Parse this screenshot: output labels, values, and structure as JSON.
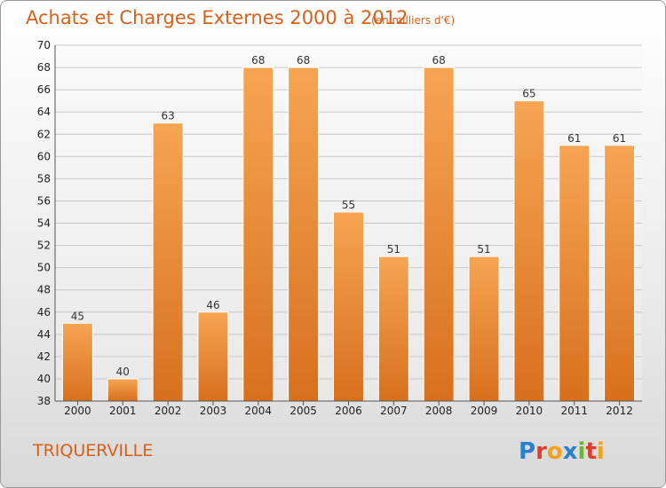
{
  "chart_data": {
    "type": "bar",
    "title": "Achats et Charges Externes 2000 à 2012",
    "subtitle": "(en milliers d'€)",
    "categories": [
      "2000",
      "2001",
      "2002",
      "2003",
      "2004",
      "2005",
      "2006",
      "2007",
      "2008",
      "2009",
      "2010",
      "2011",
      "2012"
    ],
    "values": [
      45,
      40,
      63,
      46,
      68,
      68,
      55,
      51,
      68,
      51,
      65,
      61,
      61
    ],
    "ylim": [
      38,
      70
    ],
    "yticks": [
      38,
      40,
      42,
      44,
      46,
      48,
      50,
      52,
      54,
      56,
      58,
      60,
      62,
      64,
      66,
      68,
      70
    ],
    "grid": true,
    "colors": {
      "bar_top": "#f6a553",
      "bar_bottom": "#d8701d",
      "title": "#d9601a"
    }
  },
  "commune": "TRIQUERVILLE",
  "logo": {
    "letters": [
      {
        "ch": "P",
        "color": "#2a7fd0"
      },
      {
        "ch": "r",
        "color": "#e23b2e"
      },
      {
        "ch": "o",
        "color": "#f4a11b"
      },
      {
        "ch": "x",
        "color": "#2a7fd0"
      },
      {
        "ch": "i",
        "color": "#6ab832"
      },
      {
        "ch": "t",
        "color": "#e23b2e"
      },
      {
        "ch": "i",
        "color": "#f4a11b"
      }
    ]
  }
}
